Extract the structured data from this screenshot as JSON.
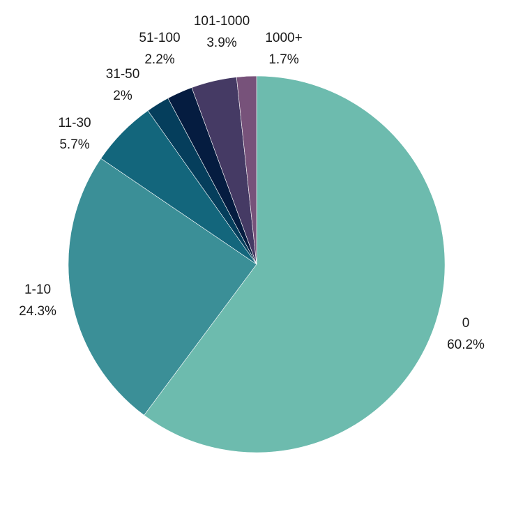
{
  "chart_data": {
    "type": "pie",
    "title": "",
    "categories": [
      "0",
      "1-10",
      "11-30",
      "31-50",
      "51-100",
      "101-1000",
      "1000+"
    ],
    "values": [
      60.2,
      24.3,
      5.7,
      2.0,
      2.2,
      3.9,
      1.7
    ],
    "value_labels": [
      "60.2%",
      "24.3%",
      "5.7%",
      "2%",
      "2.2%",
      "3.9%",
      "1.7%"
    ],
    "colors": [
      "#6dbbae",
      "#3b8f97",
      "#13667c",
      "#053e5c",
      "#051c40",
      "#453a64",
      "#77527a"
    ],
    "start_angle": "12 o'clock",
    "direction": "clockwise",
    "legend": "none",
    "labels_position": "outside"
  }
}
